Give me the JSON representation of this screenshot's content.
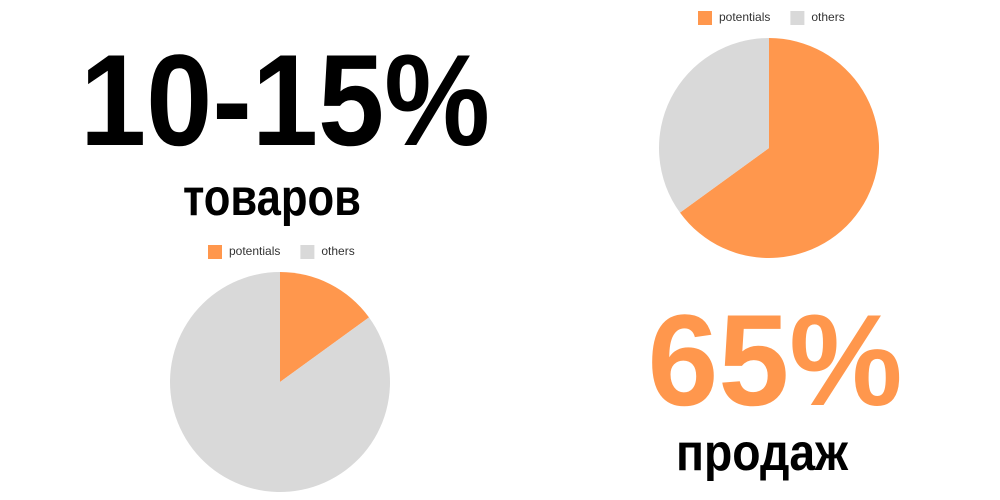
{
  "chart_data": [
    {
      "type": "pie",
      "categories": [
        "potentials",
        "others"
      ],
      "values": [
        15,
        85
      ],
      "colors": [
        "#ff974d",
        "#d9d9d9"
      ]
    },
    {
      "type": "pie",
      "categories": [
        "potentials",
        "others"
      ],
      "values": [
        65,
        35
      ],
      "colors": [
        "#ff974d",
        "#d9d9d9"
      ]
    }
  ],
  "stats": [
    {
      "figure": "10-15%",
      "caption": "товаров",
      "color": "#000000"
    },
    {
      "figure": "65%",
      "caption": "продаж",
      "color": "#ff974d"
    }
  ]
}
